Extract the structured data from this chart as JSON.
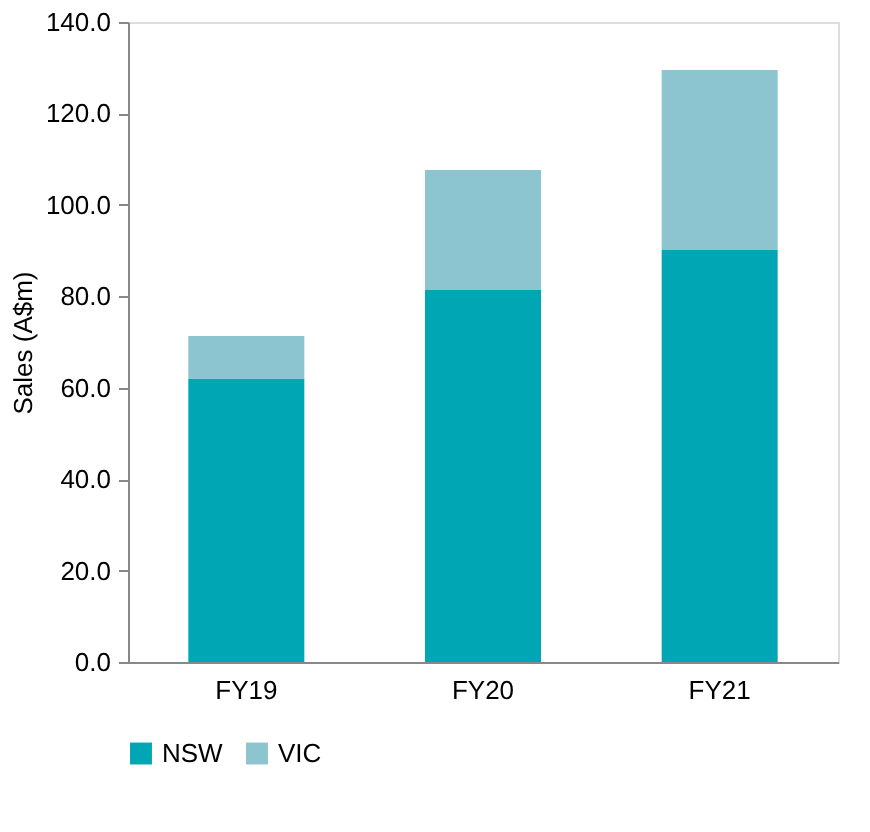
{
  "chart_data": {
    "type": "bar",
    "stacked": true,
    "ylabel": "Sales (A$m)",
    "categories": [
      "FY19",
      "FY20",
      "FY21"
    ],
    "series": [
      {
        "name": "NSW",
        "color": "#00a6b4",
        "values": [
          62.0,
          81.4,
          90.1
        ]
      },
      {
        "name": "VIC",
        "color": "#8cc5cf",
        "values": [
          9.3,
          26.2,
          39.4
        ]
      }
    ],
    "ylim": [
      0,
      140
    ],
    "yticks": [
      {
        "value": 0,
        "label": "0.0"
      },
      {
        "value": 20,
        "label": "20.0"
      },
      {
        "value": 40,
        "label": "40.0"
      },
      {
        "value": 60,
        "label": "60.0"
      },
      {
        "value": 80,
        "label": "80.0"
      },
      {
        "value": 100,
        "label": "100.0"
      },
      {
        "value": 120,
        "label": "120.0"
      },
      {
        "value": 140,
        "label": "140.0"
      }
    ],
    "grid": false,
    "legend": "bottom"
  }
}
